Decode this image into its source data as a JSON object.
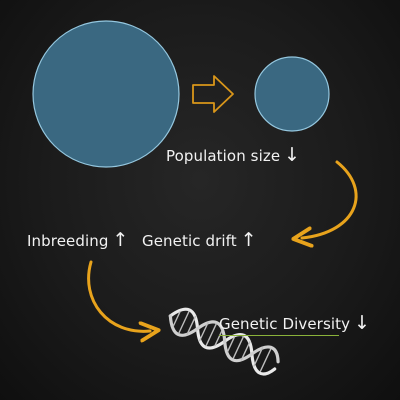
{
  "labels": {
    "population": {
      "text": "Population size",
      "arrow": "↓"
    },
    "inbreeding": {
      "text": "Inbreeding",
      "arrow": "↑"
    },
    "genetic_drift": {
      "text": "Genetic drift",
      "arrow": "↑"
    },
    "genetic_diversity": {
      "text": "Genetic Diversity",
      "arrow": "↓"
    }
  },
  "colors": {
    "background": "#1b1b1b",
    "circle_fill": "#3d6f8a",
    "circle_stroke": "#9fd6f0",
    "curved_arrow": "#e8a31c",
    "block_arrow": "#d9961a",
    "text": "#f2f2f2",
    "diversity_underline": "#8ab23a"
  },
  "icons": {
    "large_circle": "large-population-circle",
    "small_circle": "small-population-circle",
    "dna": "dna-helix-icon"
  }
}
